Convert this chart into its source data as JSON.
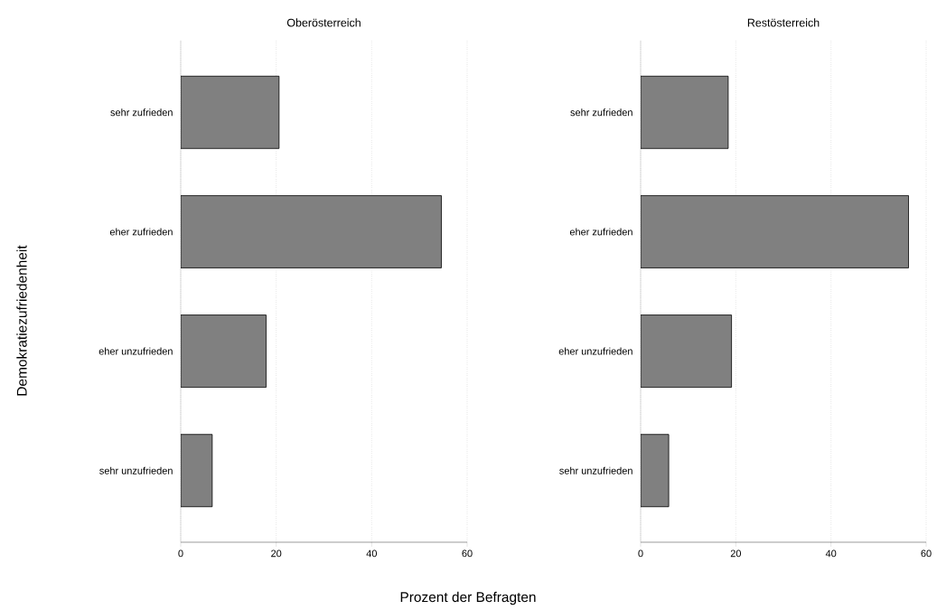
{
  "chart_data": [
    {
      "type": "bar",
      "orientation": "horizontal",
      "title": "Oberösterreich",
      "xlabel": "Prozent der Befragten",
      "ylabel": "Demokratiezufriedenheit",
      "categories": [
        "sehr zufrieden",
        "eher zufrieden",
        "eher unzufrieden",
        "sehr unzufrieden"
      ],
      "values": [
        20.6,
        54.6,
        17.9,
        6.6
      ],
      "color": "#808080",
      "xlim": [
        0,
        60
      ],
      "xticks": [
        0,
        20,
        40,
        60
      ],
      "grid": "x"
    },
    {
      "type": "bar",
      "orientation": "horizontal",
      "title": "Restösterreich",
      "categories": [
        "sehr zufrieden",
        "eher zufrieden",
        "eher unzufrieden",
        "sehr unzufrieden"
      ],
      "values": [
        18.4,
        56.3,
        19.1,
        5.9
      ],
      "color": "#808080",
      "xlim": [
        0,
        60
      ],
      "xticks": [
        0,
        20,
        40,
        60
      ],
      "grid": "x"
    }
  ]
}
